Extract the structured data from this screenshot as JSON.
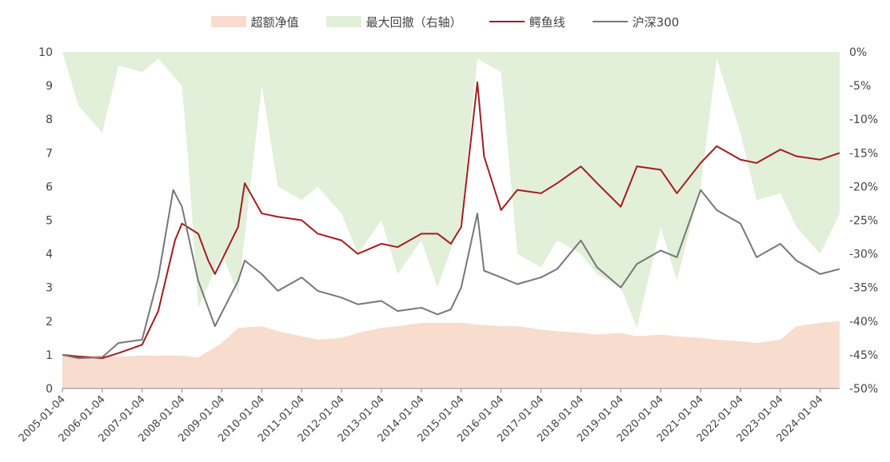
{
  "chart_data": {
    "type": "line",
    "title": "",
    "legend_position": "top-center",
    "x_ticks": [
      "2005-01-04",
      "2006-01-04",
      "2007-01-04",
      "2008-01-04",
      "2009-01-04",
      "2010-01-04",
      "2011-01-04",
      "2012-01-04",
      "2013-01-04",
      "2014-01-04",
      "2015-01-04",
      "2016-01-04",
      "2017-01-04",
      "2018-01-04",
      "2019-01-04",
      "2020-01-04",
      "2021-01-04",
      "2022-01-04",
      "2023-01-04",
      "2024-01-04"
    ],
    "x_range": [
      "2005-01-04",
      "2024-06-30"
    ],
    "y_left": {
      "ticks": [
        "0",
        "1",
        "2",
        "3",
        "4",
        "5",
        "6",
        "7",
        "8",
        "9",
        "10"
      ],
      "range": [
        0,
        10
      ]
    },
    "y_right": {
      "ticks": [
        "0%",
        "-5%",
        "-10%",
        "-15%",
        "-20%",
        "-25%",
        "-30%",
        "-35%",
        "-40%",
        "-45%",
        "-50%"
      ],
      "range": [
        -50,
        0
      ]
    },
    "series": [
      {
        "name": "超额净值",
        "type": "area",
        "axis": "left",
        "color": "#f8dccd",
        "x": [
          "2005-01-04",
          "2005-06-01",
          "2006-01-04",
          "2006-06-01",
          "2007-01-04",
          "2007-06-01",
          "2008-01-04",
          "2008-06-01",
          "2009-01-04",
          "2009-06-01",
          "2010-01-04",
          "2010-06-01",
          "2011-01-04",
          "2011-06-01",
          "2012-01-04",
          "2012-06-01",
          "2013-01-04",
          "2013-06-01",
          "2014-01-04",
          "2014-06-01",
          "2015-01-04",
          "2015-06-01",
          "2016-01-04",
          "2016-06-01",
          "2017-01-04",
          "2017-06-01",
          "2018-01-04",
          "2018-06-01",
          "2019-01-04",
          "2019-06-01",
          "2020-01-04",
          "2020-06-01",
          "2021-01-04",
          "2021-06-01",
          "2022-01-04",
          "2022-06-01",
          "2023-01-04",
          "2023-06-01",
          "2024-01-04",
          "2024-06-30"
        ],
        "values": [
          1.0,
          0.97,
          0.98,
          0.95,
          0.98,
          0.97,
          0.98,
          0.92,
          1.35,
          1.8,
          1.85,
          1.7,
          1.55,
          1.45,
          1.5,
          1.65,
          1.8,
          1.85,
          1.95,
          1.95,
          1.95,
          1.9,
          1.85,
          1.85,
          1.75,
          1.7,
          1.65,
          1.6,
          1.65,
          1.55,
          1.6,
          1.55,
          1.5,
          1.45,
          1.4,
          1.35,
          1.45,
          1.85,
          1.95,
          2.0
        ]
      },
      {
        "name": "最大回撤（右轴）",
        "type": "area",
        "axis": "right",
        "color": "#e2efd9",
        "x": [
          "2005-01-04",
          "2005-06-01",
          "2006-01-04",
          "2006-06-01",
          "2007-01-04",
          "2007-06-01",
          "2008-01-04",
          "2008-03-01",
          "2008-06-01",
          "2009-01-04",
          "2009-06-01",
          "2010-01-04",
          "2010-06-01",
          "2011-01-04",
          "2011-06-01",
          "2012-01-04",
          "2012-06-01",
          "2013-01-04",
          "2013-06-01",
          "2014-01-04",
          "2014-06-01",
          "2015-01-04",
          "2015-06-01",
          "2016-01-04",
          "2016-06-01",
          "2017-01-04",
          "2017-06-01",
          "2018-01-04",
          "2018-06-01",
          "2019-01-04",
          "2019-06-01",
          "2020-01-04",
          "2020-06-01",
          "2021-01-04",
          "2021-06-01",
          "2022-01-04",
          "2022-06-01",
          "2023-01-04",
          "2023-06-01",
          "2024-01-04",
          "2024-06-30"
        ],
        "values": [
          0,
          -8,
          -12,
          -2,
          -3,
          -1,
          -5,
          -16,
          -38,
          -30,
          -36,
          -5,
          -20,
          -22,
          -20,
          -24,
          -30,
          -25,
          -33,
          -28,
          -35,
          -25,
          -1,
          -3,
          -30,
          -32,
          -28,
          -30,
          -33,
          -35,
          -41,
          -26,
          -34,
          -20,
          -1,
          -12,
          -22,
          -21,
          -26,
          -30,
          -24
        ]
      },
      {
        "name": "鳄鱼线",
        "type": "line",
        "axis": "left",
        "color": "#a31d1d",
        "x": [
          "2005-01-04",
          "2005-06-01",
          "2006-01-04",
          "2006-06-01",
          "2007-01-04",
          "2007-06-01",
          "2007-11-01",
          "2008-01-04",
          "2008-06-01",
          "2008-09-01",
          "2008-11-01",
          "2009-06-01",
          "2009-08-01",
          "2010-01-04",
          "2010-06-01",
          "2011-01-04",
          "2011-06-01",
          "2012-01-04",
          "2012-06-01",
          "2013-01-04",
          "2013-06-01",
          "2014-01-04",
          "2014-06-01",
          "2014-10-01",
          "2015-01-04",
          "2015-06-01",
          "2015-08-01",
          "2016-01-04",
          "2016-06-01",
          "2017-01-04",
          "2017-06-01",
          "2018-01-04",
          "2018-06-01",
          "2019-01-04",
          "2019-06-01",
          "2020-01-04",
          "2020-06-01",
          "2021-01-04",
          "2021-06-01",
          "2022-01-04",
          "2022-06-01",
          "2023-01-04",
          "2023-06-01",
          "2024-01-04",
          "2024-06-30"
        ],
        "values": [
          1.0,
          0.95,
          0.9,
          1.05,
          1.3,
          2.3,
          4.4,
          4.9,
          4.6,
          3.8,
          3.4,
          4.8,
          6.1,
          5.2,
          5.1,
          5.0,
          4.6,
          4.4,
          4.0,
          4.3,
          4.2,
          4.6,
          4.6,
          4.3,
          4.8,
          9.1,
          6.9,
          5.3,
          5.9,
          5.8,
          6.1,
          6.6,
          6.1,
          5.4,
          6.6,
          6.5,
          5.8,
          6.7,
          7.2,
          6.8,
          6.7,
          7.1,
          6.9,
          6.8,
          7.0
        ]
      },
      {
        "name": "沪深300",
        "type": "line",
        "axis": "left",
        "color": "#777777",
        "x": [
          "2005-01-04",
          "2005-06-01",
          "2006-01-04",
          "2006-06-01",
          "2007-01-04",
          "2007-06-01",
          "2007-10-16",
          "2008-01-04",
          "2008-06-01",
          "2008-11-01",
          "2009-06-01",
          "2009-08-01",
          "2010-01-04",
          "2010-06-01",
          "2011-01-04",
          "2011-06-01",
          "2012-01-04",
          "2012-06-01",
          "2013-01-04",
          "2013-06-01",
          "2014-01-04",
          "2014-06-01",
          "2014-10-01",
          "2015-01-04",
          "2015-06-01",
          "2015-08-01",
          "2016-01-04",
          "2016-06-01",
          "2017-01-04",
          "2017-06-01",
          "2018-01-04",
          "2018-06-01",
          "2019-01-04",
          "2019-06-01",
          "2020-01-04",
          "2020-06-01",
          "2021-01-04",
          "2021-06-01",
          "2022-01-04",
          "2022-06-01",
          "2023-01-04",
          "2023-06-01",
          "2024-01-04",
          "2024-06-30"
        ],
        "values": [
          1.0,
          0.9,
          0.93,
          1.35,
          1.45,
          3.3,
          5.9,
          5.4,
          3.2,
          1.85,
          3.2,
          3.8,
          3.4,
          2.9,
          3.3,
          2.9,
          2.7,
          2.5,
          2.6,
          2.3,
          2.4,
          2.2,
          2.35,
          3.0,
          5.2,
          3.5,
          3.3,
          3.1,
          3.3,
          3.55,
          4.4,
          3.6,
          3.0,
          3.7,
          4.1,
          3.9,
          5.9,
          5.3,
          4.9,
          3.9,
          4.3,
          3.8,
          3.4,
          3.55
        ]
      }
    ]
  }
}
